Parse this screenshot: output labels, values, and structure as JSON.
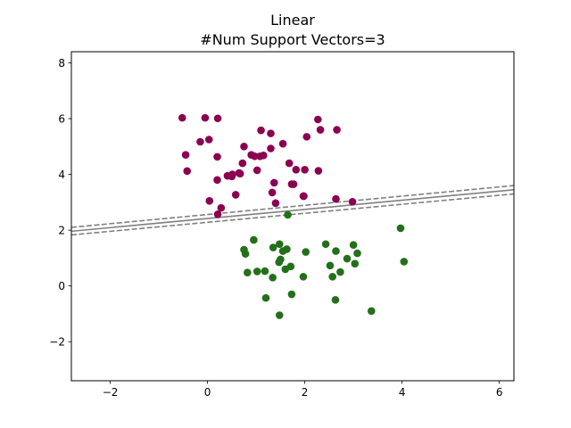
{
  "chart_data": {
    "type": "scatter",
    "title": "Linear",
    "subtitle": "#Num Support Vectors=3",
    "xlabel": "",
    "ylabel": "",
    "xlim": [
      -2.8,
      6.3
    ],
    "ylim": [
      -3.4,
      8.4
    ],
    "x_ticks": [
      -2,
      0,
      2,
      4,
      6
    ],
    "y_ticks": [
      -2,
      0,
      2,
      4,
      6,
      8
    ],
    "x_tick_labels": [
      "−2",
      "0",
      "2",
      "4",
      "6"
    ],
    "y_tick_labels": [
      "−2",
      "0",
      "2",
      "4",
      "6",
      "8"
    ],
    "grid": false,
    "legend": "none",
    "lines": [
      {
        "role": "decision-boundary",
        "x": [
          -2.8,
          6.3
        ],
        "y": [
          1.96,
          3.45
        ],
        "color": "#808080",
        "dash": "solid"
      },
      {
        "role": "margin-upper",
        "x": [
          -2.8,
          6.3
        ],
        "y": [
          2.1,
          3.6
        ],
        "color": "#808080",
        "dash": "dashed"
      },
      {
        "role": "margin-lower",
        "x": [
          -2.8,
          6.3
        ],
        "y": [
          1.83,
          3.3
        ],
        "color": "#808080",
        "dash": "dashed"
      }
    ],
    "series": [
      {
        "color": "#8b0051",
        "x": [
          -0.52,
          -0.05,
          0.21,
          -0.45,
          -0.15,
          0.03,
          0.2,
          -0.42,
          0.75,
          1.1,
          1.3,
          1.55,
          2.27,
          2.32,
          2.66,
          2.04,
          0.65,
          0.72,
          0.9,
          0.97,
          1.08,
          1.15,
          1.3,
          1.68,
          1.82,
          1.77,
          1.98,
          2.0,
          2.28,
          0.2,
          0.41,
          0.5,
          0.58,
          0.67,
          0.51,
          1.02,
          1.37,
          1.33,
          1.73,
          1.97,
          2.64,
          2.98,
          0.04,
          0.28,
          0.21,
          1.4
        ],
        "y": [
          6.03,
          6.03,
          6.01,
          4.7,
          5.17,
          5.25,
          4.63,
          4.12,
          5.0,
          5.58,
          5.47,
          5.1,
          5.97,
          5.6,
          5.6,
          5.35,
          4.05,
          4.4,
          4.7,
          4.65,
          4.65,
          4.68,
          4.93,
          4.4,
          4.17,
          3.65,
          3.22,
          4.17,
          4.13,
          3.8,
          3.95,
          3.93,
          3.27,
          4.03,
          4.0,
          4.15,
          3.7,
          3.35,
          3.65,
          3.22,
          3.12,
          3.02,
          3.05,
          2.8,
          2.57,
          2.97
        ]
      },
      {
        "color": "#246f1a",
        "x": [
          1.65,
          0.95,
          0.75,
          0.82,
          1.35,
          1.48,
          1.55,
          1.63,
          2.02,
          2.43,
          2.64,
          3.0,
          3.08,
          2.87,
          2.52,
          0.78,
          1.02,
          1.18,
          1.47,
          1.5,
          1.6,
          1.71,
          1.97,
          2.57,
          2.73,
          3.03,
          1.2,
          1.34,
          1.73,
          1.48,
          2.63,
          3.37,
          3.97,
          4.04
        ],
        "y": [
          2.55,
          1.65,
          1.3,
          0.48,
          1.38,
          1.5,
          1.25,
          1.32,
          1.22,
          1.5,
          1.25,
          1.47,
          1.17,
          0.98,
          0.73,
          1.15,
          0.52,
          0.53,
          0.85,
          0.95,
          0.6,
          0.7,
          0.33,
          0.33,
          0.5,
          0.8,
          -0.43,
          0.3,
          -0.3,
          -1.05,
          -0.5,
          -0.9,
          2.07,
          0.87
        ]
      }
    ]
  }
}
